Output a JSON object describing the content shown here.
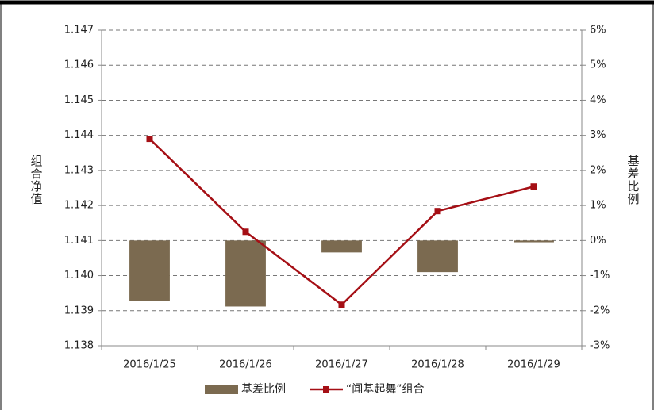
{
  "chart_data": {
    "type": "bar-line",
    "y_label": "组合净值",
    "y2_label": "基差比例",
    "categories": [
      "2016/1/25",
      "2016/1/26",
      "2016/1/27",
      "2016/1/28",
      "2016/1/29"
    ],
    "series": [
      {
        "name": "基差比例",
        "type": "bar",
        "axis": "y2",
        "color": "#7b6a50",
        "values": [
          -1.72,
          -1.88,
          -0.34,
          -0.9,
          -0.05
        ]
      },
      {
        "name": "“闻基起舞”组合",
        "type": "line",
        "axis": "y",
        "color": "#a50f15",
        "values": [
          1.1439,
          1.14125,
          1.13917,
          1.14184,
          1.14254
        ]
      }
    ],
    "ylim": [
      1.138,
      1.147
    ],
    "yticks": [
      1.138,
      1.139,
      {
        "value": 1.14,
        "label": "1.140"
      },
      1.141,
      1.142,
      1.143,
      1.144,
      1.145,
      1.146,
      1.147
    ],
    "y2lim": [
      -3,
      6
    ],
    "y2ticks": [
      {
        "value": -3,
        "label": "-3%"
      },
      {
        "value": -2,
        "label": "-2%"
      },
      {
        "value": -1,
        "label": "-1%"
      },
      {
        "value": 0,
        "label": "0%"
      },
      {
        "value": 1,
        "label": "1%"
      },
      {
        "value": 2,
        "label": "2%"
      },
      {
        "value": 3,
        "label": "3%"
      },
      {
        "value": 4,
        "label": "4%"
      },
      {
        "value": 5,
        "label": "5%"
      },
      {
        "value": 6,
        "label": "6%"
      }
    ],
    "grid": true,
    "legend": "bottom"
  }
}
